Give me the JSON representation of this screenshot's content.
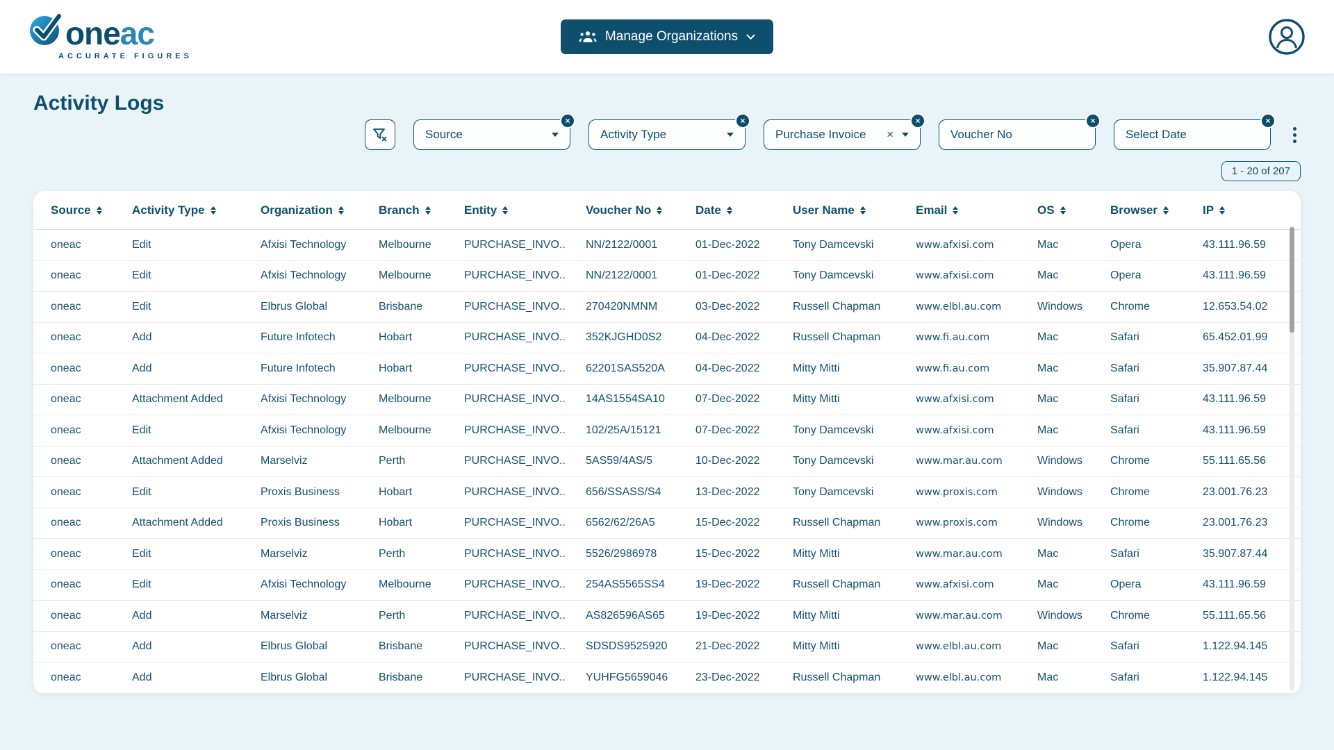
{
  "header": {
    "logo_brand_one": "one",
    "logo_brand_ac": "ac",
    "logo_tagline": "ACCURATE FIGURES",
    "manage_orgs_label": "Manage Organizations"
  },
  "page": {
    "title": "Activity Logs"
  },
  "filters": {
    "source_label": "Source",
    "activity_type_label": "Activity Type",
    "purchase_invoice_label": "Purchase Invoice",
    "voucher_no_label": "Voucher No",
    "select_date_label": "Select Date",
    "clear_glyph": "×"
  },
  "pagination": {
    "label": "1 - 20 of 207"
  },
  "table": {
    "columns": [
      "Source",
      "Activity Type",
      "Organization",
      "Branch",
      "Entity",
      "Voucher No",
      "Date",
      "User Name",
      "Email",
      "OS",
      "Browser",
      "IP"
    ],
    "rows": [
      [
        "oneac",
        "Edit",
        "Afxisi Technology",
        "Melbourne",
        "PURCHASE_INVO..",
        "NN/2122/0001",
        "01-Dec-2022",
        "Tony Damcevski",
        "www.afxisi.com",
        "Mac",
        "Opera",
        "43.111.96.59"
      ],
      [
        "oneac",
        "Edit",
        "Afxisi Technology",
        "Melbourne",
        "PURCHASE_INVO..",
        "NN/2122/0001",
        "01-Dec-2022",
        "Tony Damcevski",
        "www.afxisi.com",
        "Mac",
        "Opera",
        "43.111.96.59"
      ],
      [
        "oneac",
        "Edit",
        "Elbrus Global",
        "Brisbane",
        "PURCHASE_INVO..",
        "270420NMNM",
        "03-Dec-2022",
        "Russell Chapman",
        "www.elbl.au.com",
        "Windows",
        "Chrome",
        "12.653.54.02"
      ],
      [
        "oneac",
        "Add",
        "Future Infotech",
        "Hobart",
        "PURCHASE_INVO..",
        "352KJGHD0S2",
        "04-Dec-2022",
        "Russell Chapman",
        "www.fi.au.com",
        "Mac",
        "Safari",
        "65.452.01.99"
      ],
      [
        "oneac",
        "Add",
        "Future Infotech",
        "Hobart",
        "PURCHASE_INVO..",
        "62201SAS520A",
        "04-Dec-2022",
        "Mitty Mitti",
        "www.fi.au.com",
        "Mac",
        "Safari",
        "35.907.87.44"
      ],
      [
        "oneac",
        "Attachment Added",
        "Afxisi Technology",
        "Melbourne",
        "PURCHASE_INVO..",
        "14AS1554SA10",
        "07-Dec-2022",
        "Mitty Mitti",
        "www.afxisi.com",
        "Mac",
        "Safari",
        "43.111.96.59"
      ],
      [
        "oneac",
        "Edit",
        "Afxisi Technology",
        "Melbourne",
        "PURCHASE_INVO..",
        "102/25A/15121",
        "07-Dec-2022",
        "Tony Damcevski",
        "www.afxisi.com",
        "Mac",
        "Safari",
        "43.111.96.59"
      ],
      [
        "oneac",
        "Attachment Added",
        "Marselviz",
        "Perth",
        "PURCHASE_INVO..",
        "5AS59/4AS/5",
        "10-Dec-2022",
        "Tony Damcevski",
        "www.mar.au.com",
        "Windows",
        "Chrome",
        "55.111.65.56"
      ],
      [
        "oneac",
        "Edit",
        "Proxis Business",
        "Hobart",
        "PURCHASE_INVO..",
        "656/SSASS/S4",
        "13-Dec-2022",
        "Tony Damcevski",
        "www.proxis.com",
        "Windows",
        "Chrome",
        "23.001.76.23"
      ],
      [
        "oneac",
        "Attachment Added",
        "Proxis Business",
        "Hobart",
        "PURCHASE_INVO..",
        "6562/62/26A5",
        "15-Dec-2022",
        "Russell Chapman",
        "www.proxis.com",
        "Windows",
        "Chrome",
        "23.001.76.23"
      ],
      [
        "oneac",
        "Edit",
        "Marselviz",
        "Perth",
        "PURCHASE_INVO..",
        "5526/2986978",
        "15-Dec-2022",
        "Mitty Mitti",
        "www.mar.au.com",
        "Mac",
        "Safari",
        "35.907.87.44"
      ],
      [
        "oneac",
        "Edit",
        "Afxisi Technology",
        "Melbourne",
        "PURCHASE_INVO..",
        "254AS5565SS4",
        "19-Dec-2022",
        "Russell Chapman",
        "www.afxisi.com",
        "Mac",
        "Opera",
        "43.111.96.59"
      ],
      [
        "oneac",
        "Add",
        "Marselviz",
        "Perth",
        "PURCHASE_INVO..",
        "AS826596AS65",
        "19-Dec-2022",
        "Mitty Mitti",
        "www.mar.au.com",
        "Windows",
        "Chrome",
        "55.111.65.56"
      ],
      [
        "oneac",
        "Add",
        "Elbrus Global",
        "Brisbane",
        "PURCHASE_INVO..",
        "SDSDS9525920",
        "21-Dec-2022",
        "Mitty Mitti",
        "www.elbl.au.com",
        "Mac",
        "Safari",
        "1.122.94.145"
      ],
      [
        "oneac",
        "Add",
        "Elbrus Global",
        "Brisbane",
        "PURCHASE_INVO..",
        "YUHFG5659046",
        "23-Dec-2022",
        "Russell Chapman",
        "www.elbl.au.com",
        "Mac",
        "Safari",
        "1.122.94.145"
      ]
    ]
  },
  "colors": {
    "accent_navy": "#0d4d6d",
    "button_bg": "#0f4f6e",
    "page_bg": "#e9f4f8",
    "card_bg": "#ffffff",
    "row_divider": "#ebebeb",
    "scroll_thumb": "#a3a3a3"
  }
}
